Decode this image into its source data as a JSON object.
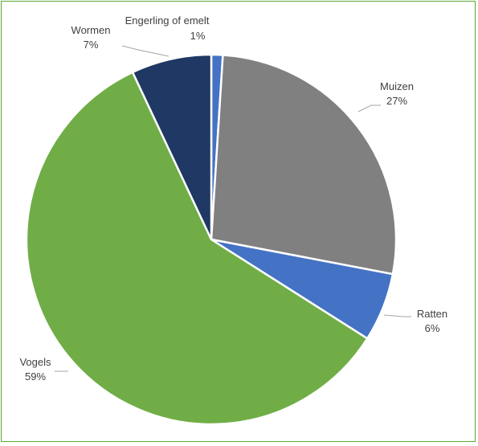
{
  "chart_data": {
    "type": "pie",
    "title": "",
    "slices": [
      {
        "name": "Engerling of emelt",
        "value": 1,
        "label": "1%",
        "color": "#4472c4"
      },
      {
        "name": "Muizen",
        "value": 27,
        "label": "27%",
        "color": "#808080"
      },
      {
        "name": "Ratten",
        "value": 6,
        "label": "6%",
        "color": "#4472c4"
      },
      {
        "name": "Vogels",
        "value": 59,
        "label": "59%",
        "color": "#70ad47"
      },
      {
        "name": "Wormen",
        "value": 7,
        "label": "7%",
        "color": "#1f3864"
      }
    ],
    "legend": "none",
    "data_labels": "outside with leader lines"
  }
}
